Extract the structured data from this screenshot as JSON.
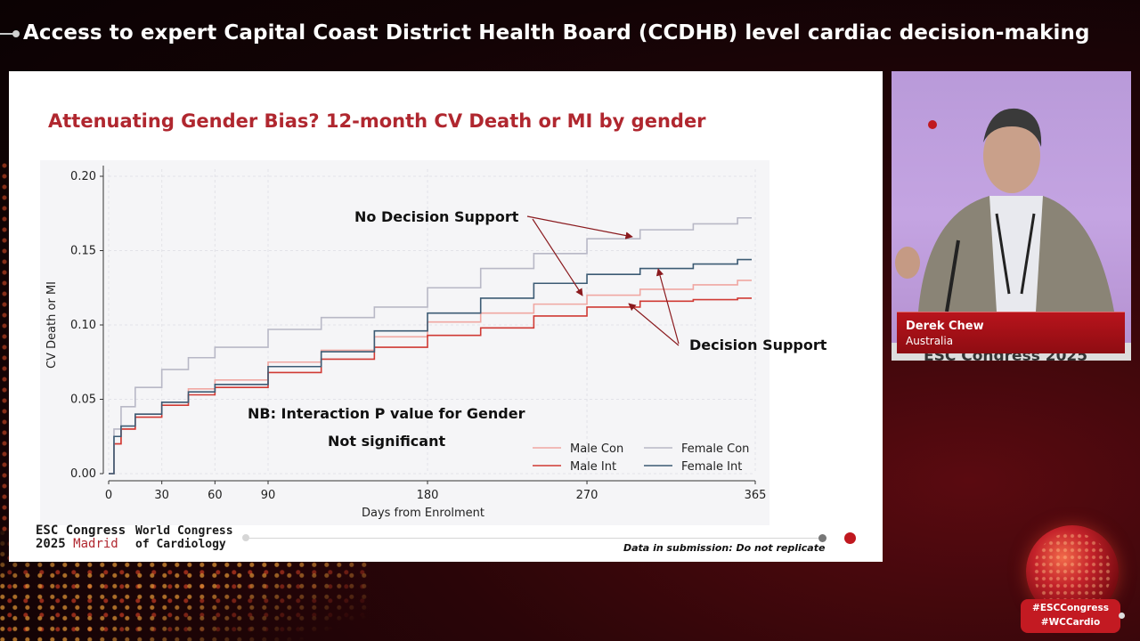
{
  "header": {
    "title": "Access to expert Capital Coast District Health Board (CCDHB) level cardiac decision-making"
  },
  "slide": {
    "title": "Attenuating Gender Bias? 12-month CV Death or MI by gender",
    "annotations": {
      "no_decision_support": "No Decision Support",
      "decision_support": "Decision Support",
      "nb_line1": "NB: Interaction P value for Gender",
      "nb_line2": "Not significant"
    },
    "footer": {
      "logo_line1": "ESC Congress",
      "logo_year": "2025",
      "logo_city": "Madrid",
      "logo2_line1": "World Congress",
      "logo2_line2": "of Cardiology",
      "disclaimer": "Data in submission: Do not replicate"
    }
  },
  "speaker": {
    "name": "Derek Chew",
    "country": "Australia",
    "backdrop_text": "ESC Congress 2025"
  },
  "hashtags": [
    "#ESCCongress",
    "#WCCardio"
  ],
  "colors": {
    "accent": "#b0272f",
    "male_con": "#f0a7a2",
    "male_int": "#d03a34",
    "female_con": "#b8b8c6",
    "female_int": "#3c5b74"
  },
  "chart_data": {
    "type": "line",
    "title": "",
    "xlabel": "Days from Enrolment",
    "ylabel": "CV Death or MI",
    "xlim": [
      0,
      365
    ],
    "ylim": [
      0,
      0.2
    ],
    "xticks": [
      0,
      30,
      60,
      90,
      180,
      270,
      365
    ],
    "yticks": [
      "0.00",
      "0.05",
      "0.10",
      "0.15",
      "0.20"
    ],
    "grid": true,
    "legend_position": "bottom-right",
    "series": [
      {
        "name": "Male Con",
        "color": "#f0a7a2",
        "x": [
          0,
          3,
          7,
          15,
          30,
          45,
          60,
          90,
          120,
          150,
          180,
          210,
          240,
          270,
          300,
          330,
          355
        ],
        "y": [
          0,
          0.02,
          0.03,
          0.04,
          0.048,
          0.057,
          0.063,
          0.075,
          0.083,
          0.092,
          0.102,
          0.108,
          0.114,
          0.12,
          0.124,
          0.127,
          0.13
        ]
      },
      {
        "name": "Male Int",
        "color": "#d03a34",
        "x": [
          0,
          3,
          7,
          15,
          30,
          45,
          60,
          90,
          120,
          150,
          180,
          210,
          240,
          270,
          300,
          330,
          355
        ],
        "y": [
          0,
          0.02,
          0.03,
          0.038,
          0.046,
          0.053,
          0.058,
          0.068,
          0.077,
          0.085,
          0.093,
          0.098,
          0.106,
          0.112,
          0.116,
          0.117,
          0.118
        ]
      },
      {
        "name": "Female Con",
        "color": "#b8b8c6",
        "x": [
          0,
          3,
          7,
          15,
          30,
          45,
          60,
          90,
          120,
          150,
          180,
          210,
          240,
          270,
          300,
          330,
          355
        ],
        "y": [
          0,
          0.03,
          0.045,
          0.058,
          0.07,
          0.078,
          0.085,
          0.097,
          0.105,
          0.112,
          0.125,
          0.138,
          0.148,
          0.158,
          0.164,
          0.168,
          0.172
        ]
      },
      {
        "name": "Female Int",
        "color": "#3c5b74",
        "x": [
          0,
          3,
          7,
          15,
          30,
          45,
          60,
          90,
          120,
          150,
          180,
          210,
          240,
          270,
          300,
          330,
          355
        ],
        "y": [
          0,
          0.025,
          0.032,
          0.04,
          0.048,
          0.055,
          0.06,
          0.072,
          0.082,
          0.096,
          0.108,
          0.118,
          0.128,
          0.134,
          0.138,
          0.141,
          0.144
        ]
      }
    ]
  }
}
